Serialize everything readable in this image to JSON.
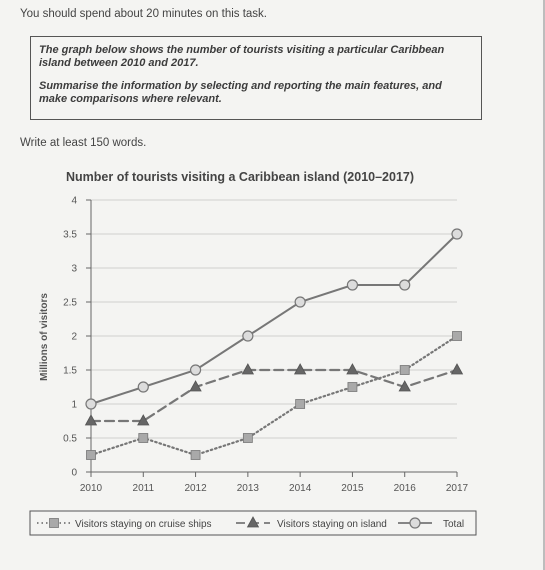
{
  "intro": "You should spend about 20 minutes on this task.",
  "task": {
    "line1": "The graph below shows the number of tourists visiting a particular Caribbean island between 2010 and 2017.",
    "line2": "Summarise the information by selecting and reporting the main features, and make comparisons where relevant."
  },
  "words_note": "Write at least 150 words.",
  "colors": {
    "line": "#777777",
    "marker_fill": "#a9a9a9",
    "circle_fill": "#dcdcdc",
    "grid": "#cfcfcf"
  },
  "chart_data": {
    "type": "line",
    "title": "Number of tourists visiting a Caribbean island (2010–2017)",
    "xlabel": "",
    "ylabel": "Millions of visitors",
    "x": [
      "2010",
      "2011",
      "2012",
      "2013",
      "2014",
      "2015",
      "2016",
      "2017"
    ],
    "ylim": [
      0,
      4
    ],
    "yticks": [
      "0",
      "0.5",
      "1",
      "1.5",
      "2",
      "2.5",
      "3",
      "3.5",
      "4"
    ],
    "grid": true,
    "legend_position": "bottom",
    "series": [
      {
        "name": "Visitors staying on cruise ships",
        "marker": "square",
        "dash": "dotted",
        "values": [
          0.25,
          0.5,
          0.25,
          0.5,
          1,
          1.25,
          1.5,
          2
        ]
      },
      {
        "name": "Visitors staying on island",
        "marker": "triangle",
        "dash": "dashed",
        "values": [
          0.75,
          0.75,
          1.25,
          1.5,
          1.5,
          1.5,
          1.25,
          1.5
        ]
      },
      {
        "name": "Total",
        "marker": "circle",
        "dash": "solid",
        "values": [
          1,
          1.25,
          1.5,
          2,
          2.5,
          2.75,
          2.75,
          3.5
        ]
      }
    ]
  }
}
